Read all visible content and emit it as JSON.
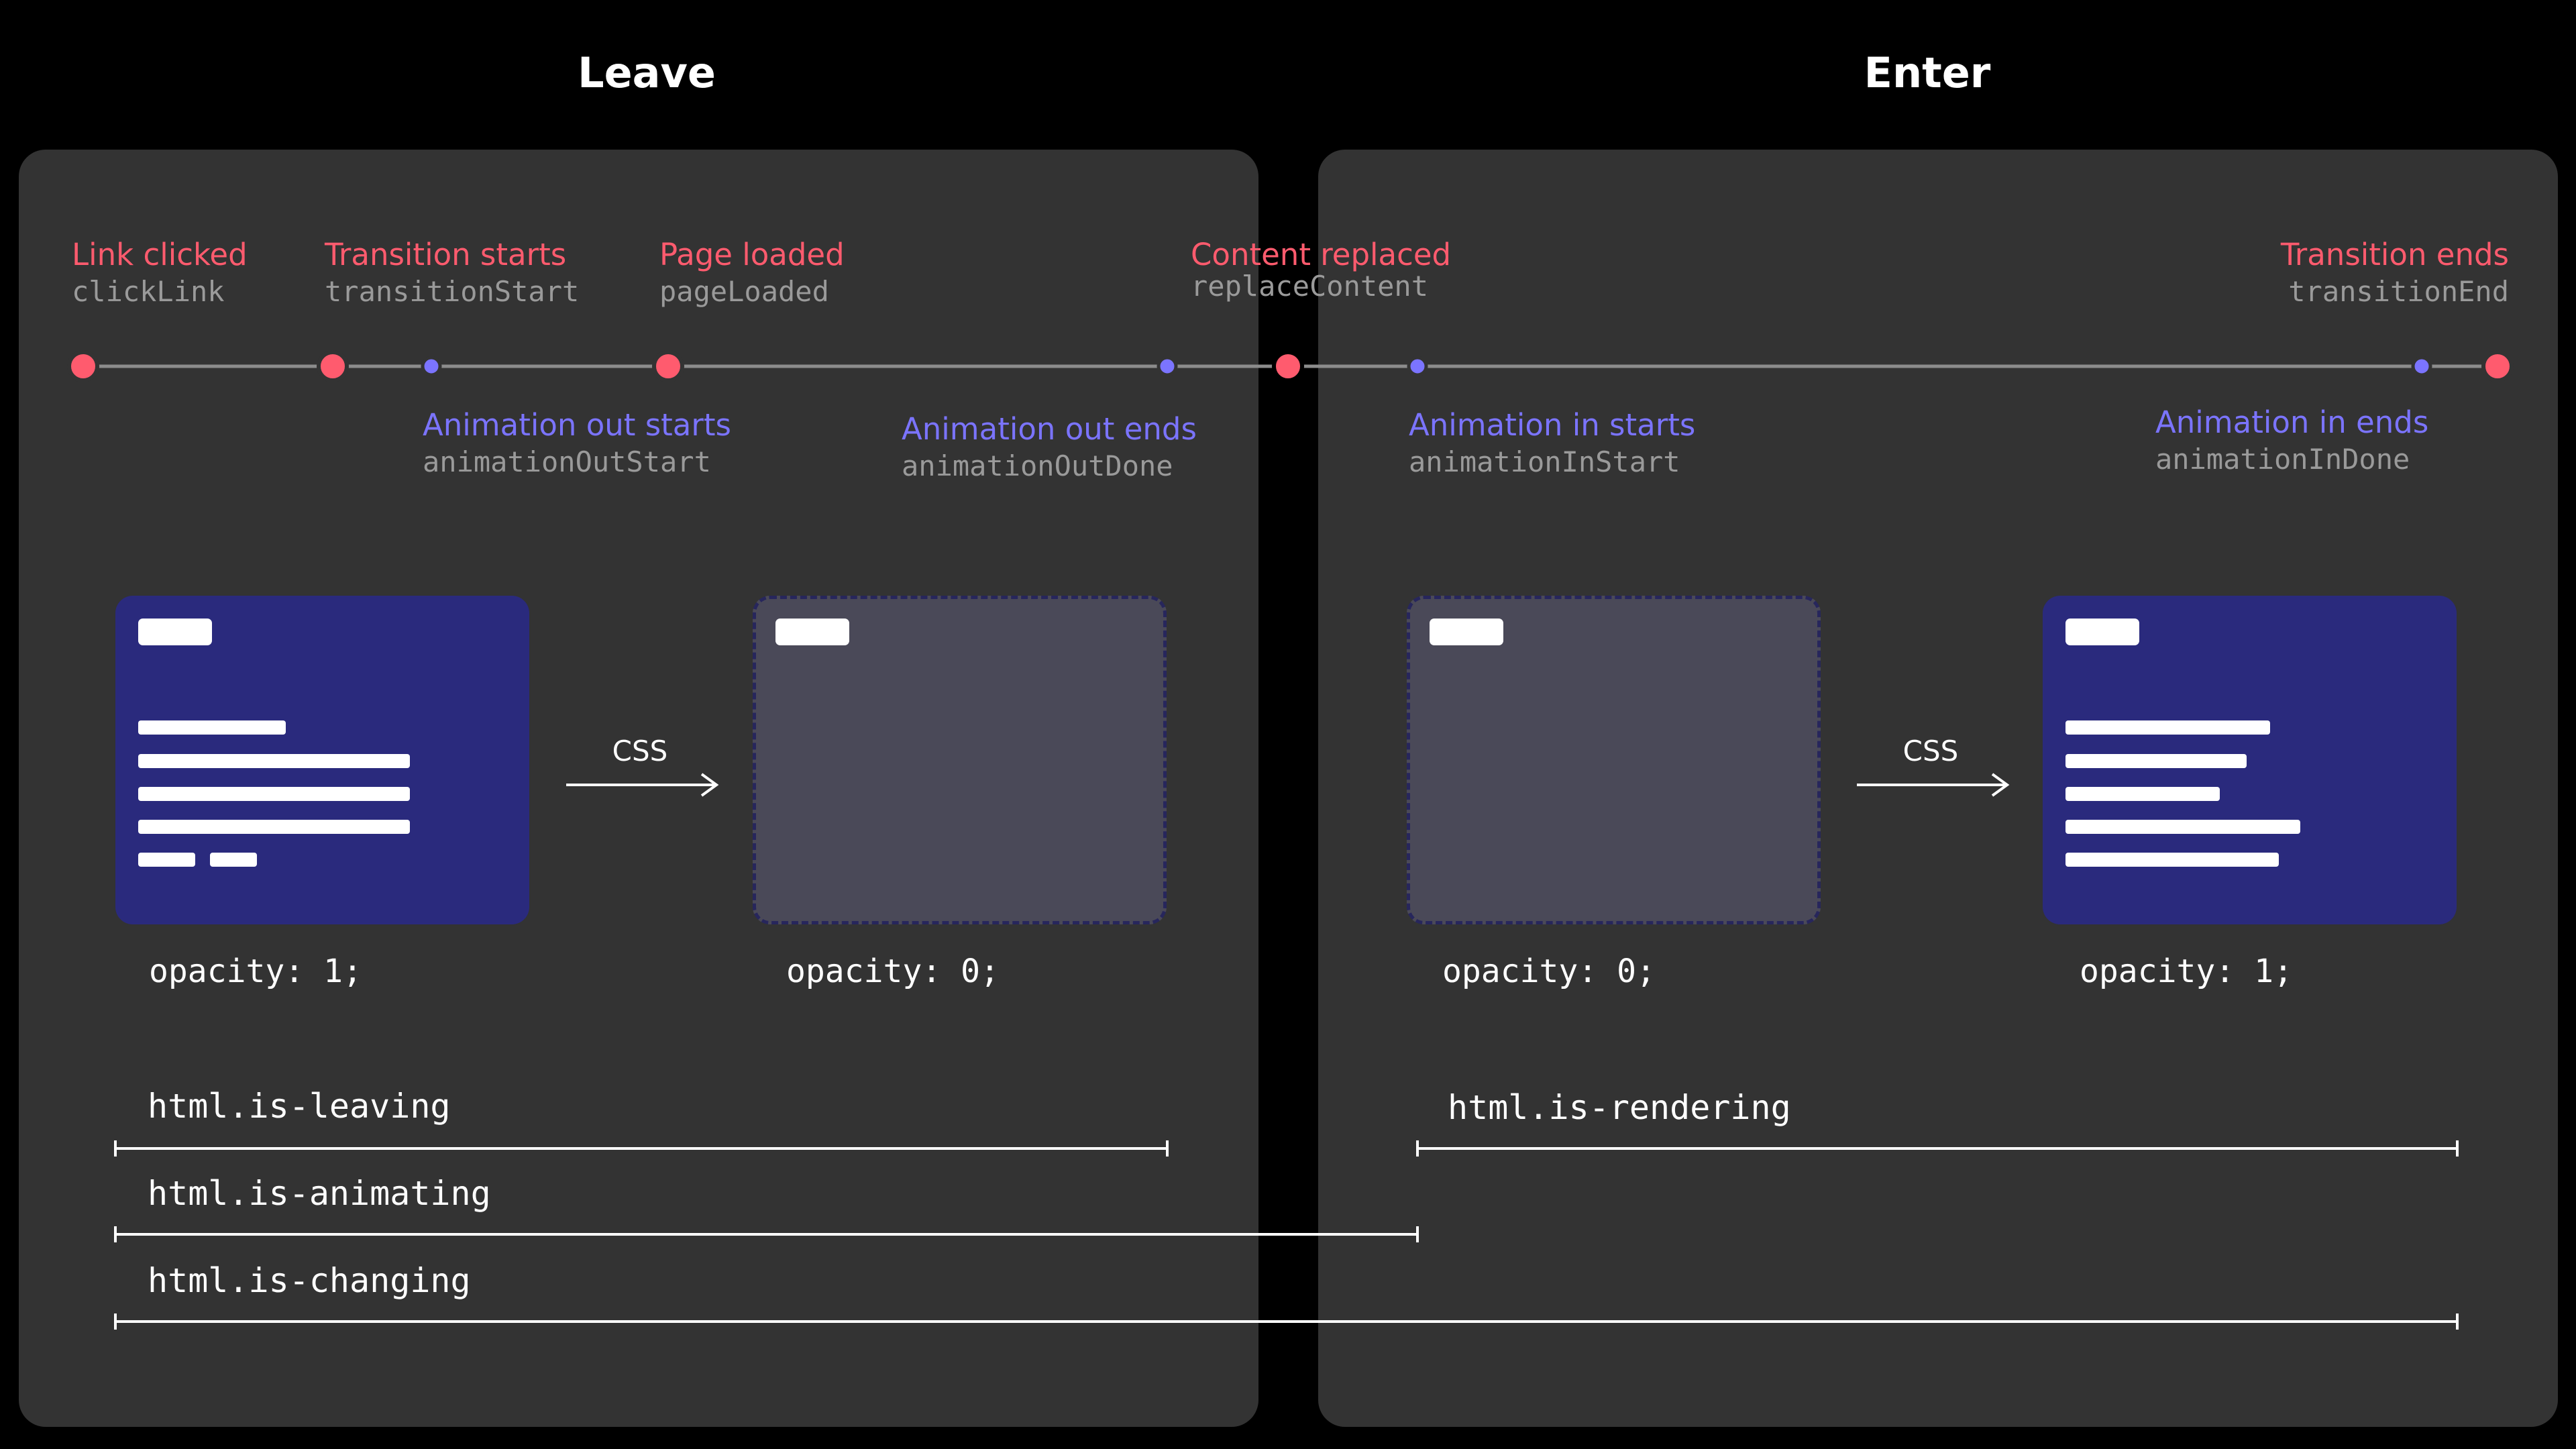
{
  "sections": {
    "leave": "Leave",
    "enter": "Enter"
  },
  "events": [
    {
      "title": "Link clicked",
      "code": "clickLink"
    },
    {
      "title": "Transition starts",
      "code": "transitionStart"
    },
    {
      "title": "Page loaded",
      "code": "pageLoaded"
    },
    {
      "title": "Content replaced",
      "code": "replaceContent"
    },
    {
      "title": "Transition ends",
      "code": "transitionEnd"
    }
  ],
  "animation_events": [
    {
      "title": "Animation out starts",
      "code": "animationOutStart"
    },
    {
      "title": "Animation out ends",
      "code": "animationOutDone"
    },
    {
      "title": "Animation in starts",
      "code": "animationInStart"
    },
    {
      "title": "Animation in ends",
      "code": "animationInDone"
    }
  ],
  "transitions": {
    "css_label": "CSS"
  },
  "opacity": {
    "leave_before": "opacity: 1;",
    "leave_after": "opacity: 0;",
    "enter_before": "opacity: 0;",
    "enter_after": "opacity: 1;"
  },
  "classes": {
    "is_leaving": "html.is-leaving",
    "is_animating": "html.is-animating",
    "is_changing": "html.is-changing",
    "is_rendering": "html.is-rendering"
  },
  "colors": {
    "event_red": "#ff5b6e",
    "animation_blue": "#7b74ff",
    "panel": "#333333",
    "page_blue": "#2a2a7d",
    "page_ghost": "#4a4958"
  }
}
